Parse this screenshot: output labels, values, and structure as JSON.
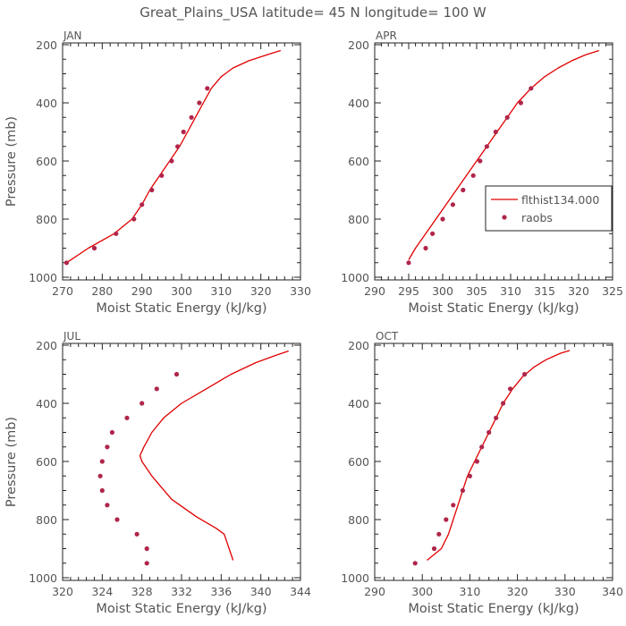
{
  "title": "Great_Plains_USA   latitude= 45 N longitude= 100 W",
  "legend": {
    "model_label": "flthist134.000",
    "obs_label": "raobs",
    "model_color": "#e00000",
    "obs_color": "#b0254a"
  },
  "chart_data": [
    {
      "type": "line",
      "month": "JAN",
      "xlabel": "Moist Static Energy (kJ/kg)",
      "ylabel": "Pressure (mb)",
      "xlim": [
        270,
        330
      ],
      "ylim": [
        200,
        1000
      ],
      "xticks": [
        270,
        280,
        290,
        300,
        310,
        320,
        330
      ],
      "yticks": [
        200,
        400,
        600,
        800,
        1000
      ],
      "series": [
        {
          "name": "flthist134.000",
          "style": "line",
          "x": [
            271.0,
            276.5,
            283.0,
            287.5,
            290.0,
            292.0,
            294.5,
            297.0,
            299.5,
            301.5,
            303.5,
            305.5,
            307.5,
            310.0,
            313.0,
            317.0,
            321.5,
            325.0
          ],
          "y": [
            950,
            900,
            850,
            800,
            750,
            700,
            650,
            600,
            550,
            500,
            450,
            400,
            350,
            310,
            280,
            255,
            235,
            220
          ]
        },
        {
          "name": "raobs",
          "style": "dots",
          "x": [
            271.0,
            278.0,
            283.5,
            288.0,
            290.0,
            292.5,
            295.0,
            297.5,
            299.0,
            300.5,
            302.5,
            304.5,
            306.5
          ],
          "y": [
            950,
            900,
            850,
            800,
            750,
            700,
            650,
            600,
            550,
            500,
            450,
            400,
            350
          ]
        }
      ]
    },
    {
      "type": "line",
      "month": "APR",
      "xlabel": "Moist Static Energy (kJ/kg)",
      "ylabel": "",
      "xlim": [
        290,
        325
      ],
      "ylim": [
        200,
        1000
      ],
      "xticks": [
        290,
        295,
        300,
        305,
        310,
        315,
        320,
        325
      ],
      "yticks": [
        200,
        400,
        600,
        800,
        1000
      ],
      "legend_loc": "right",
      "series": [
        {
          "name": "flthist134.000",
          "style": "line",
          "x": [
            295.0,
            296.0,
            297.5,
            299.0,
            300.5,
            302.0,
            303.5,
            305.0,
            306.5,
            308.0,
            309.5,
            311.0,
            313.0,
            315.0,
            317.0,
            319.0,
            321.0,
            323.0
          ],
          "y": [
            940,
            900,
            850,
            800,
            750,
            700,
            650,
            600,
            550,
            500,
            450,
            400,
            350,
            310,
            280,
            255,
            235,
            220
          ]
        },
        {
          "name": "raobs",
          "style": "dots",
          "x": [
            295.0,
            297.5,
            298.5,
            300.0,
            301.5,
            303.0,
            304.5,
            305.5,
            306.5,
            307.8,
            309.5,
            311.5,
            313.0
          ],
          "y": [
            950,
            900,
            850,
            800,
            750,
            700,
            650,
            600,
            550,
            500,
            450,
            400,
            350
          ]
        }
      ]
    },
    {
      "type": "line",
      "month": "JUL",
      "xlabel": "Moist Static Energy (kJ/kg)",
      "ylabel": "Pressure (mb)",
      "xlim": [
        320,
        344
      ],
      "ylim": [
        200,
        1000
      ],
      "xticks": [
        320,
        324,
        328,
        332,
        336,
        340,
        344
      ],
      "yticks": [
        200,
        400,
        600,
        800,
        1000
      ],
      "series": [
        {
          "name": "flthist134.000",
          "style": "line",
          "x": [
            337.2,
            336.8,
            336.3,
            335.5,
            333.5,
            331.0,
            329.0,
            328.0,
            327.8,
            328.2,
            329.0,
            330.2,
            332.0,
            334.5,
            337.0,
            339.5,
            341.5,
            342.8
          ],
          "y": [
            940,
            900,
            850,
            830,
            790,
            730,
            650,
            600,
            580,
            550,
            500,
            450,
            400,
            350,
            300,
            260,
            235,
            220
          ]
        },
        {
          "name": "raobs",
          "style": "dots",
          "x": [
            328.5,
            328.5,
            327.5,
            325.5,
            324.5,
            324.0,
            323.8,
            324.0,
            324.5,
            325.0,
            326.5,
            328.0,
            329.5,
            331.5
          ],
          "y": [
            950,
            900,
            850,
            800,
            750,
            700,
            650,
            600,
            550,
            500,
            450,
            400,
            350,
            300
          ]
        }
      ]
    },
    {
      "type": "line",
      "month": "OCT",
      "xlabel": "Moist Static Energy (kJ/kg)",
      "ylabel": "",
      "xlim": [
        290,
        340
      ],
      "ylim": [
        200,
        1000
      ],
      "xticks": [
        290,
        300,
        310,
        320,
        330,
        340
      ],
      "yticks": [
        200,
        400,
        600,
        800,
        1000
      ],
      "series": [
        {
          "name": "flthist134.000",
          "style": "line",
          "x": [
            301.0,
            304.0,
            305.5,
            306.5,
            307.5,
            308.5,
            309.5,
            311.0,
            312.5,
            314.0,
            315.5,
            317.0,
            319.0,
            321.0,
            323.5,
            326.0,
            329.0,
            331.0
          ],
          "y": [
            940,
            900,
            850,
            800,
            750,
            700,
            650,
            600,
            550,
            500,
            450,
            400,
            350,
            310,
            275,
            250,
            228,
            218
          ]
        },
        {
          "name": "raobs",
          "style": "dots",
          "x": [
            298.5,
            302.5,
            303.5,
            305.0,
            306.5,
            308.5,
            310.0,
            311.5,
            312.5,
            314.0,
            315.5,
            317.0,
            318.5,
            321.5
          ],
          "y": [
            950,
            900,
            850,
            800,
            750,
            700,
            650,
            600,
            550,
            500,
            450,
            400,
            350,
            300
          ]
        }
      ]
    }
  ]
}
